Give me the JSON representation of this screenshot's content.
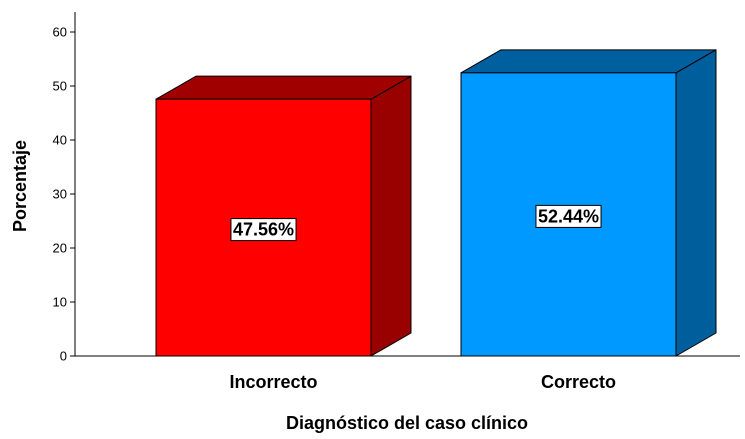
{
  "chart_data": {
    "type": "bar",
    "style": "3d",
    "xlabel": "Diagnóstico del caso clínico",
    "ylabel": "Porcentaje",
    "ylim": [
      0,
      60
    ],
    "yticks": [
      "0",
      "10",
      "20",
      "30",
      "40",
      "50",
      "60"
    ],
    "categories": [
      "Incorrecto",
      "Correcto"
    ],
    "values": [
      47.56,
      52.44
    ],
    "data_labels": [
      "47.56%",
      "52.44%"
    ],
    "colors": {
      "front": [
        "#ff0000",
        "#0099ff"
      ],
      "top": [
        "#a00000",
        "#005f9e"
      ],
      "side": [
        "#990000",
        "#005e9c"
      ]
    },
    "grid": false,
    "legend": "none"
  }
}
